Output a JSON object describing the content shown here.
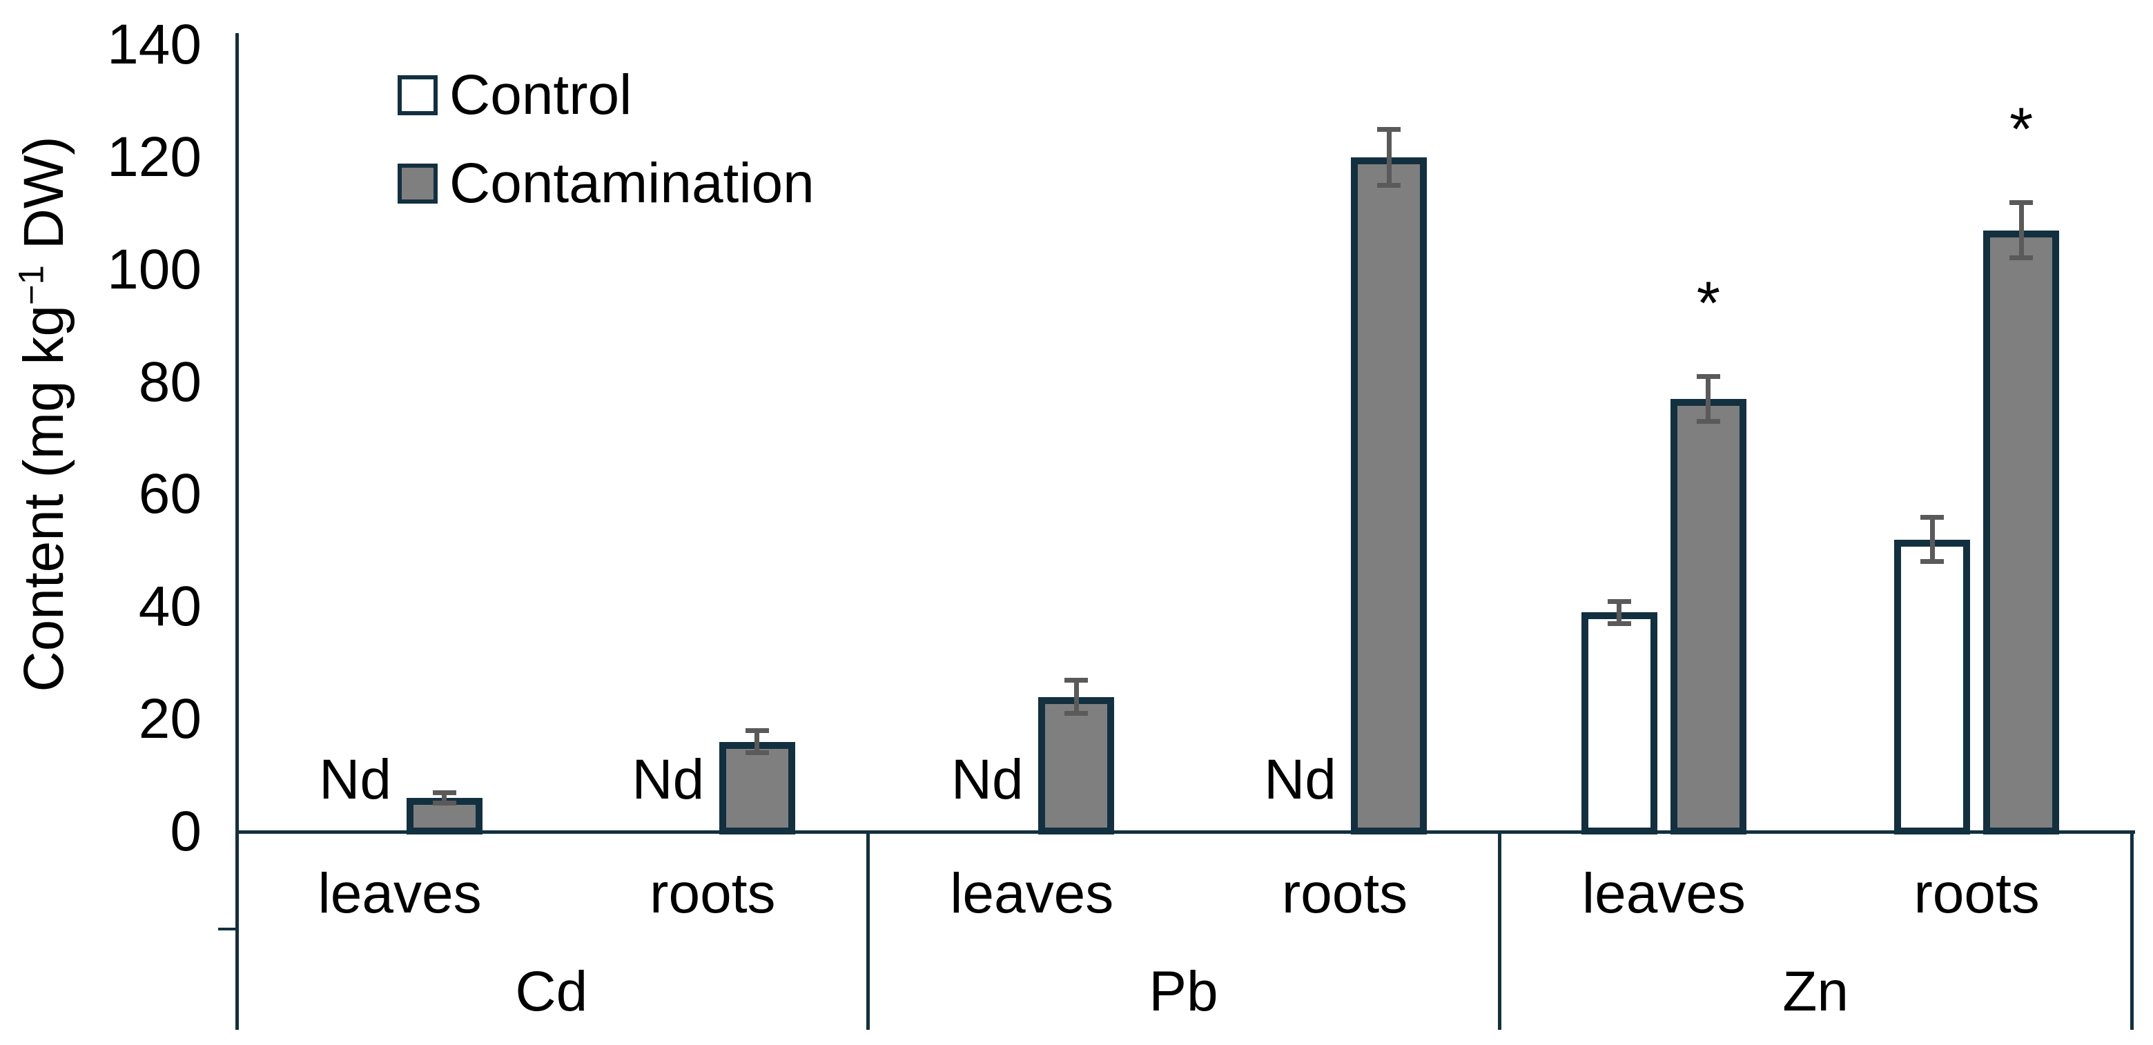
{
  "chart_data": {
    "type": "bar",
    "title": "",
    "ylabel": "Content (mg kg⁻¹ DW)",
    "ylabel_parts": {
      "prefix": "Content (mg kg",
      "sup": "−1",
      "suffix": " DW)"
    },
    "ylim": [
      0,
      140
    ],
    "ytick_step": 20,
    "yticks": [
      "0",
      "20",
      "40",
      "60",
      "80",
      "100",
      "120",
      "140"
    ],
    "grid": false,
    "legend_position": "top-left-inside",
    "legend": [
      {
        "name": "Control",
        "fill": "#ffffff"
      },
      {
        "name": "Contamination",
        "fill": "#7f7f7f"
      }
    ],
    "not_detected_label": "Nd",
    "significance_marker": "*",
    "categories_level1": [
      "leaves",
      "roots"
    ],
    "categories_level2": [
      "Cd",
      "Pb",
      "Zn"
    ],
    "groups": [
      {
        "metal": "Cd",
        "subgroups": [
          {
            "tissue": "leaves",
            "control": {
              "nd": true
            },
            "contamination": {
              "value": 6,
              "error": 1
            }
          },
          {
            "tissue": "roots",
            "control": {
              "nd": true
            },
            "contamination": {
              "value": 16,
              "error": 2
            }
          }
        ]
      },
      {
        "metal": "Pb",
        "subgroups": [
          {
            "tissue": "leaves",
            "control": {
              "nd": true
            },
            "contamination": {
              "value": 24,
              "error": 3
            }
          },
          {
            "tissue": "roots",
            "control": {
              "nd": true
            },
            "contamination": {
              "value": 120,
              "error": 5
            }
          }
        ]
      },
      {
        "metal": "Zn",
        "subgroups": [
          {
            "tissue": "leaves",
            "control": {
              "value": 39,
              "error": 2
            },
            "contamination": {
              "value": 77,
              "error": 4,
              "significant": true
            }
          },
          {
            "tissue": "roots",
            "control": {
              "value": 52,
              "error": 4
            },
            "contamination": {
              "value": 107,
              "error": 5,
              "significant": true
            }
          }
        ]
      }
    ],
    "colors": {
      "outline": "#12303f",
      "control_fill": "#ffffff",
      "contamination_fill": "#7f7f7f",
      "error_bar": "#5a5a5a",
      "text": "#000000",
      "background": "#ffffff"
    }
  }
}
